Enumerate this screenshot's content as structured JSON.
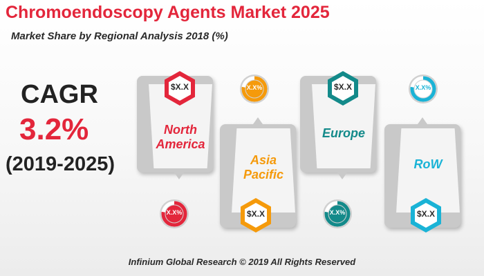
{
  "header": {
    "title": "Chromoendoscopy Agents Market 2025",
    "subtitle": "Market Share by Regional Analysis 2018 (%)"
  },
  "cagr": {
    "label": "CAGR",
    "value": "3.2%",
    "period": "(2019-2025)"
  },
  "regions": [
    {
      "name_line1": "North",
      "name_line2": "America",
      "value": "$X.X",
      "share": "X.X%",
      "color": "#e3263b"
    },
    {
      "name_line1": "Asia",
      "name_line2": "Pacific",
      "value": "$X.X",
      "share": "X.X%",
      "color": "#f59a0b"
    },
    {
      "name_line1": "Europe",
      "name_line2": "",
      "value": "$X.X",
      "share": "X.X%",
      "color": "#138a8a"
    },
    {
      "name_line1": "RoW",
      "name_line2": "",
      "value": "$X.X",
      "share": "X.X%",
      "color": "#1ab3d6"
    }
  ],
  "footer": {
    "text": "Infinium Global Research © 2019 All Rights Reserved"
  }
}
